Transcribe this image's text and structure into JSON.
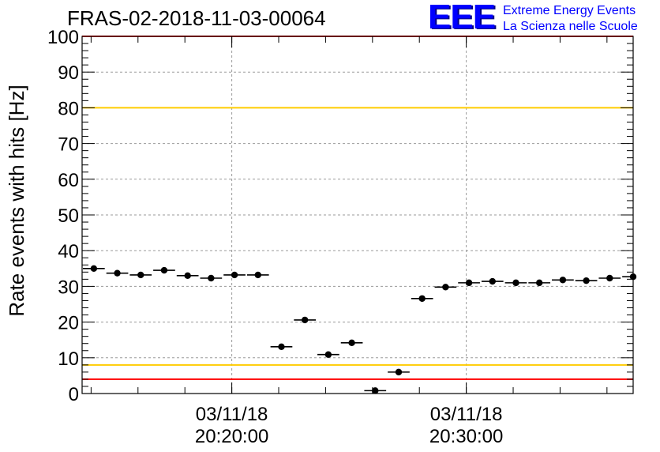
{
  "title": "FRAS-02-2018-11-03-00064",
  "logo": {
    "mark": "EEE",
    "line1": "Extreme Energy Events",
    "line2": "La Scienza nelle Scuole",
    "color": "#0000ff"
  },
  "chart_data": {
    "type": "scatter",
    "ylabel": "Rate events with hits [Hz]",
    "xlabel": "",
    "ylim": [
      0,
      100
    ],
    "yticks": [
      "0",
      "10",
      "20",
      "30",
      "40",
      "50",
      "60",
      "70",
      "80",
      "90",
      "100"
    ],
    "xticks": [
      {
        "date": "03/11/18",
        "time": "20:20:00"
      },
      {
        "date": "03/11/18",
        "time": "20:30:00"
      }
    ],
    "xrange": [
      "20:13:37",
      "20:37:07"
    ],
    "grid": true,
    "reference_lines": [
      {
        "y": 100,
        "color": "#ff0000"
      },
      {
        "y": 80,
        "color": "#ffcc00"
      },
      {
        "y": 8,
        "color": "#ffcc00"
      },
      {
        "y": 4,
        "color": "#ff0000"
      }
    ],
    "series": [
      {
        "marker_color": "#000000",
        "bin_width_s": 60,
        "points": [
          {
            "x": "20:14:07",
            "y": 35.0
          },
          {
            "x": "20:15:07",
            "y": 33.7
          },
          {
            "x": "20:16:07",
            "y": 33.2
          },
          {
            "x": "20:17:07",
            "y": 34.5
          },
          {
            "x": "20:18:07",
            "y": 33.0
          },
          {
            "x": "20:19:07",
            "y": 32.3
          },
          {
            "x": "20:20:07",
            "y": 33.2
          },
          {
            "x": "20:21:07",
            "y": 33.2
          },
          {
            "x": "20:22:07",
            "y": 13.1
          },
          {
            "x": "20:23:07",
            "y": 20.6
          },
          {
            "x": "20:24:07",
            "y": 10.9
          },
          {
            "x": "20:25:07",
            "y": 14.2
          },
          {
            "x": "20:26:07",
            "y": 0.8
          },
          {
            "x": "20:27:07",
            "y": 6.0
          },
          {
            "x": "20:28:07",
            "y": 26.6
          },
          {
            "x": "20:29:07",
            "y": 29.8
          },
          {
            "x": "20:30:07",
            "y": 31.0
          },
          {
            "x": "20:31:07",
            "y": 31.4
          },
          {
            "x": "20:32:07",
            "y": 31.0
          },
          {
            "x": "20:33:07",
            "y": 31.0
          },
          {
            "x": "20:34:07",
            "y": 31.8
          },
          {
            "x": "20:35:07",
            "y": 31.6
          },
          {
            "x": "20:36:07",
            "y": 32.3
          },
          {
            "x": "20:37:07",
            "y": 32.7
          }
        ]
      }
    ]
  }
}
